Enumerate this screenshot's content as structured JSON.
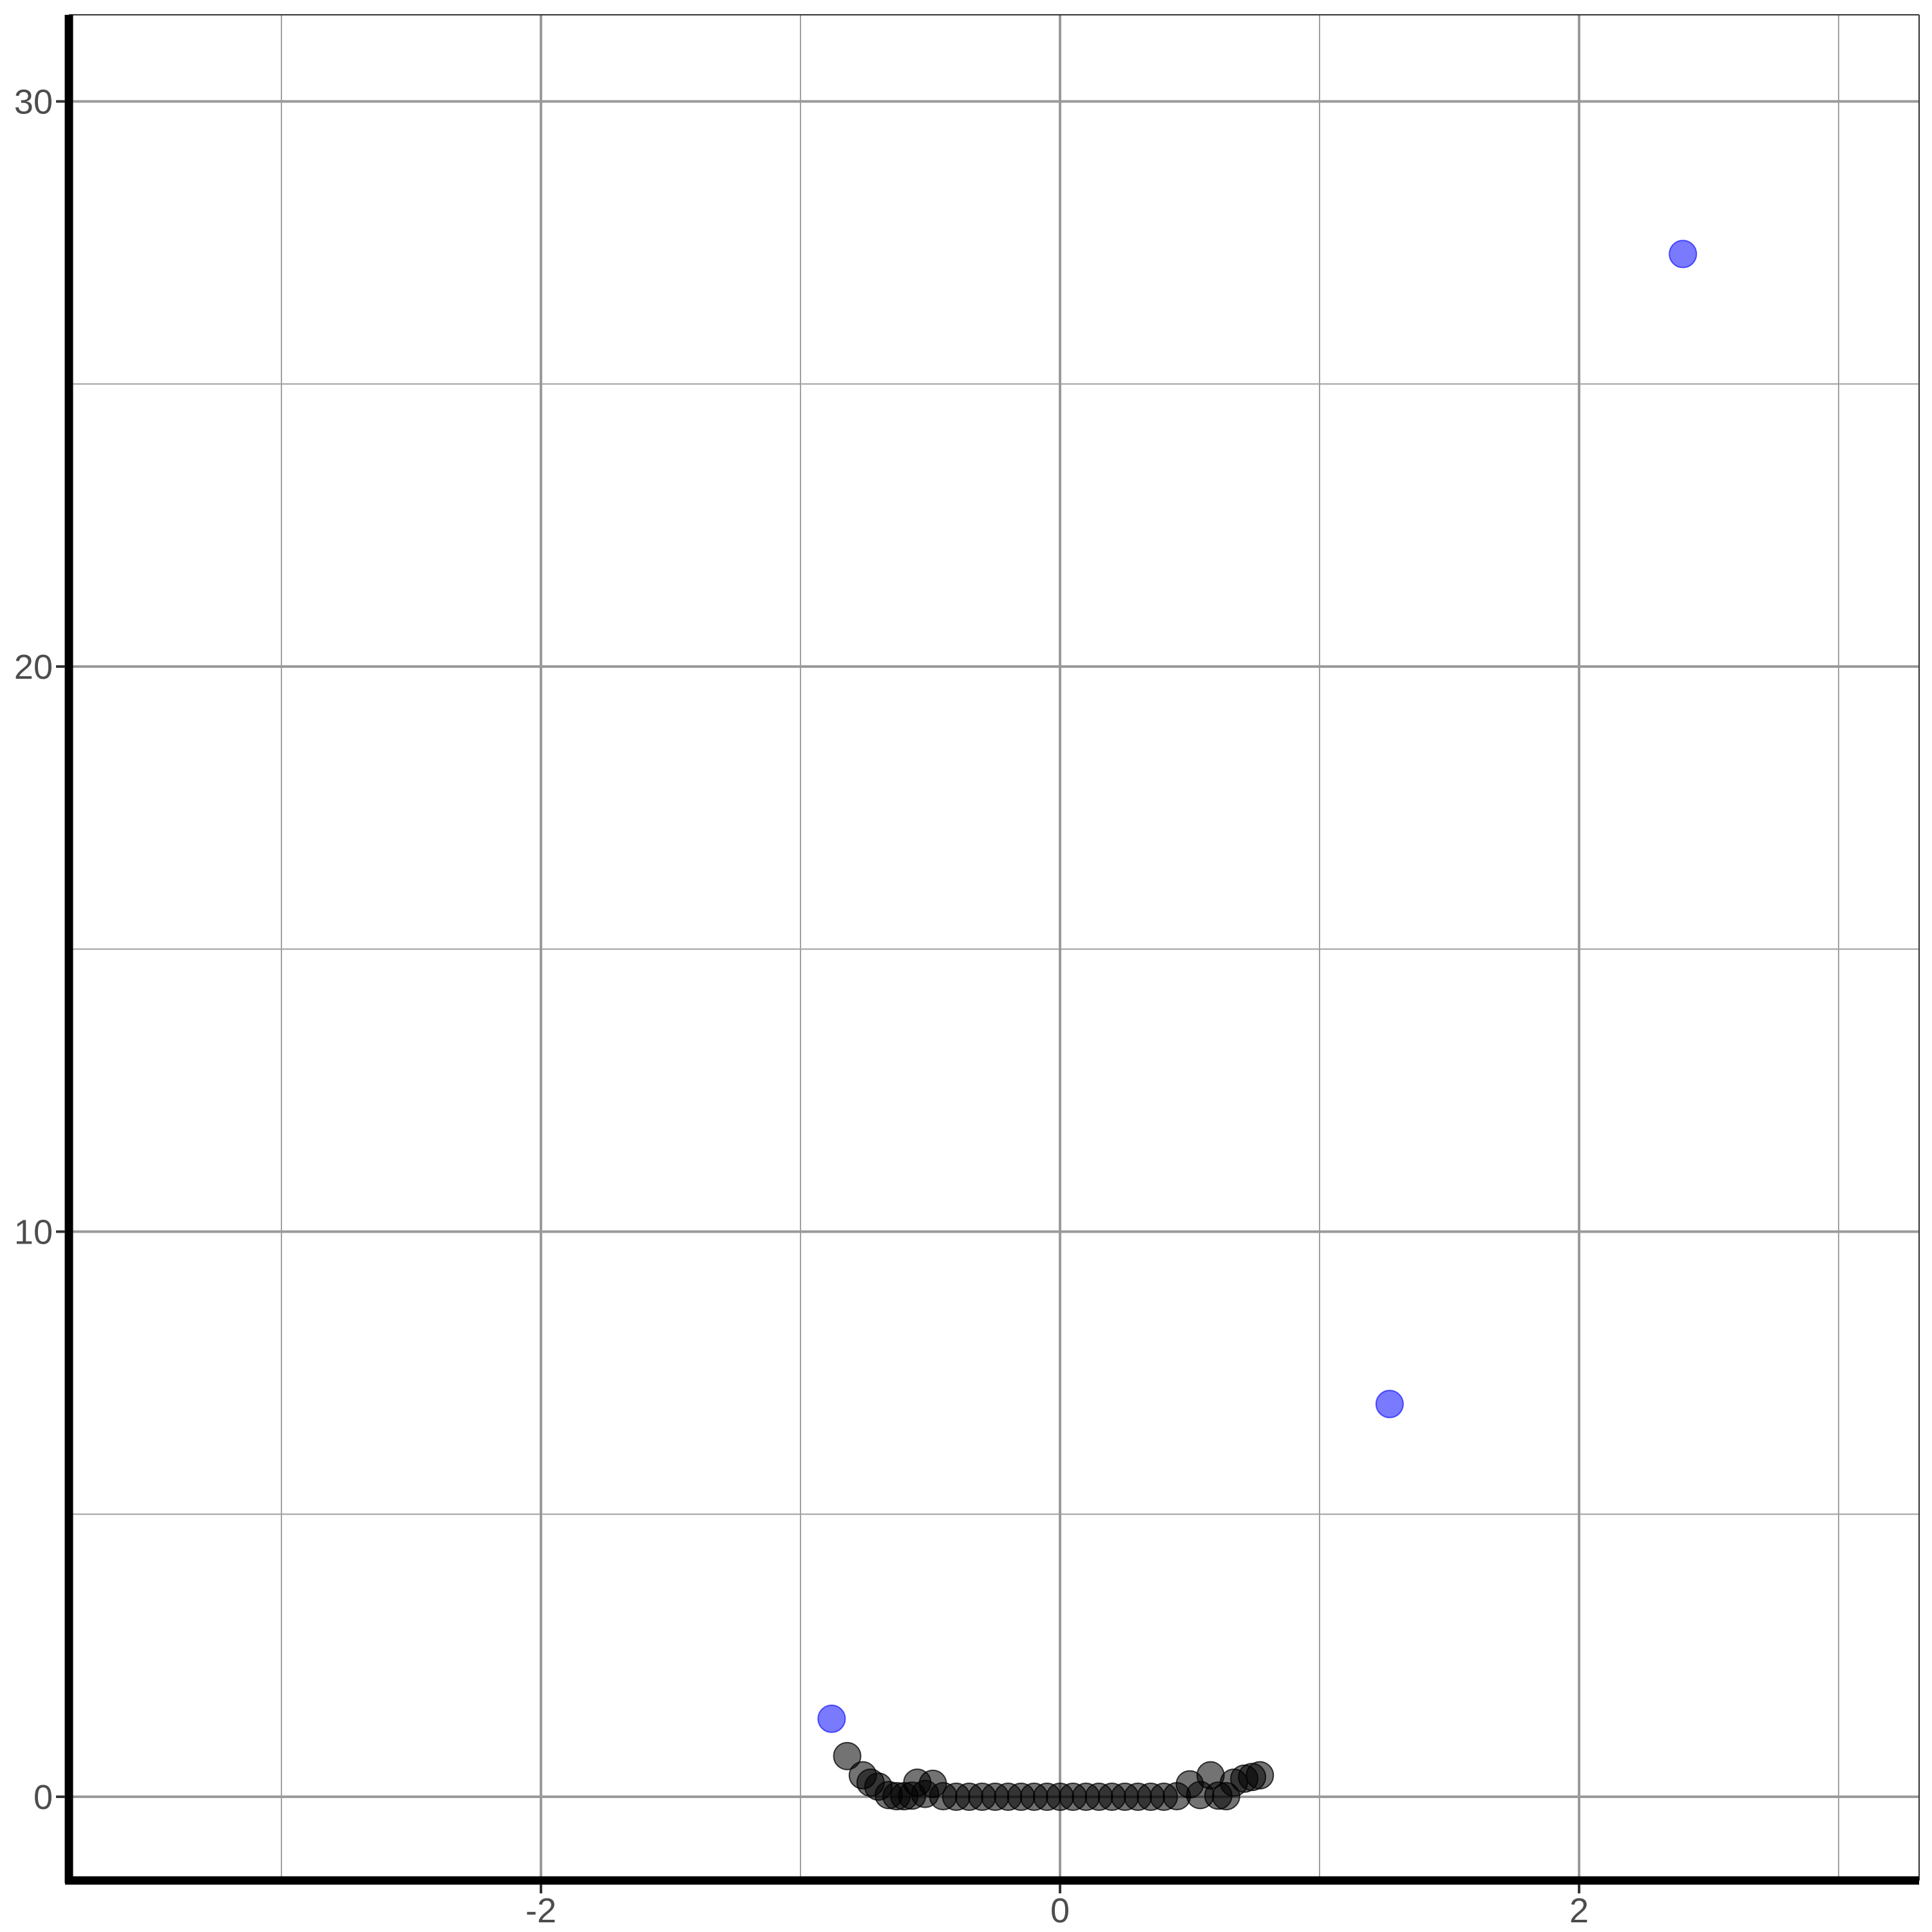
{
  "chart_data": {
    "type": "scatter",
    "title": "",
    "xlabel": "",
    "ylabel": "",
    "xlim": [
      -3.8,
      3.3
    ],
    "ylim": [
      -1.5,
      31.5
    ],
    "x_ticks": [
      -2,
      0,
      2
    ],
    "x_tick_labels": [
      "-2",
      "0",
      "2"
    ],
    "x_minor_ticks": [
      -3,
      -1,
      1,
      3
    ],
    "y_ticks": [
      0,
      10,
      20,
      30
    ],
    "y_tick_labels": [
      "0",
      "10",
      "20",
      "30"
    ],
    "y_minor_ticks": [
      5,
      15,
      25
    ],
    "grid": true,
    "legend": "none",
    "series": [
      {
        "color": "#3333ff",
        "opacity": 0.65,
        "points": [
          {
            "x": -0.88,
            "y": 1.38
          },
          {
            "x": 1.27,
            "y": 6.95
          },
          {
            "x": 2.4,
            "y": 27.3
          }
        ]
      },
      {
        "color": "#000000",
        "opacity": 0.55,
        "points": [
          {
            "x": -0.82,
            "y": 0.72
          },
          {
            "x": -0.76,
            "y": 0.38
          },
          {
            "x": -0.73,
            "y": 0.25
          },
          {
            "x": -0.7,
            "y": 0.18
          },
          {
            "x": -0.66,
            "y": 0.03
          },
          {
            "x": -0.63,
            "y": 0.01
          },
          {
            "x": -0.6,
            "y": 0.01
          },
          {
            "x": -0.57,
            "y": 0.02
          },
          {
            "x": -0.55,
            "y": 0.25
          },
          {
            "x": -0.52,
            "y": 0.05
          },
          {
            "x": -0.49,
            "y": 0.23
          },
          {
            "x": -0.45,
            "y": 0.01
          },
          {
            "x": -0.4,
            "y": 0.0
          },
          {
            "x": -0.35,
            "y": 0.0
          },
          {
            "x": -0.3,
            "y": 0.0
          },
          {
            "x": -0.25,
            "y": 0.0
          },
          {
            "x": -0.2,
            "y": 0.0
          },
          {
            "x": -0.15,
            "y": 0.0
          },
          {
            "x": -0.1,
            "y": 0.0
          },
          {
            "x": -0.05,
            "y": 0.0
          },
          {
            "x": 0.0,
            "y": 0.0
          },
          {
            "x": 0.05,
            "y": 0.0
          },
          {
            "x": 0.1,
            "y": 0.0
          },
          {
            "x": 0.15,
            "y": 0.0
          },
          {
            "x": 0.2,
            "y": 0.0
          },
          {
            "x": 0.25,
            "y": 0.0
          },
          {
            "x": 0.3,
            "y": 0.0
          },
          {
            "x": 0.35,
            "y": 0.0
          },
          {
            "x": 0.4,
            "y": 0.0
          },
          {
            "x": 0.45,
            "y": 0.01
          },
          {
            "x": 0.5,
            "y": 0.22
          },
          {
            "x": 0.54,
            "y": 0.03
          },
          {
            "x": 0.58,
            "y": 0.38
          },
          {
            "x": 0.61,
            "y": 0.02
          },
          {
            "x": 0.64,
            "y": 0.01
          },
          {
            "x": 0.67,
            "y": 0.25
          },
          {
            "x": 0.71,
            "y": 0.32
          },
          {
            "x": 0.74,
            "y": 0.35
          },
          {
            "x": 0.77,
            "y": 0.38
          }
        ]
      }
    ]
  }
}
